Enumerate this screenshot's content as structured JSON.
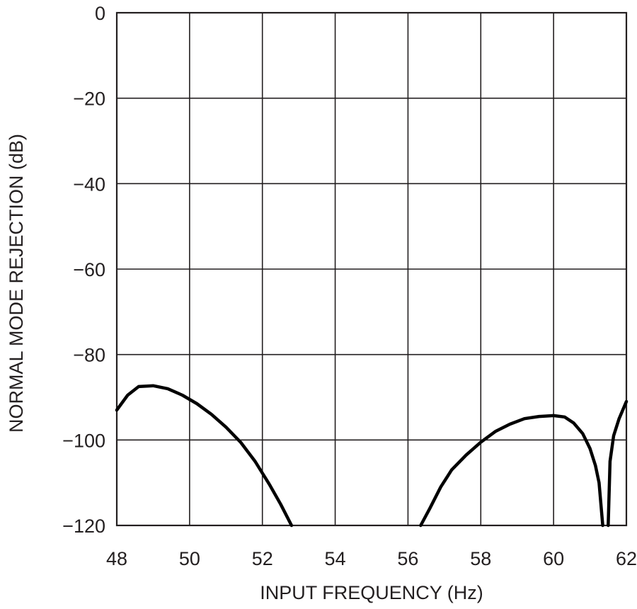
{
  "chart_data": {
    "type": "line",
    "title": "",
    "xlabel": "INPUT FREQUENCY (Hz)",
    "ylabel": "NORMAL MODE REJECTION (dB)",
    "xlim": [
      48,
      62
    ],
    "ylim": [
      -120,
      0
    ],
    "xticks": [
      48,
      50,
      52,
      54,
      56,
      58,
      60,
      62
    ],
    "yticks": [
      0,
      -20,
      -40,
      -60,
      -80,
      -100,
      -120
    ],
    "xtick_labels": [
      "48",
      "50",
      "52",
      "54",
      "56",
      "58",
      "60",
      "62"
    ],
    "ytick_labels": [
      "0",
      "−20",
      "−40",
      "−60",
      "−80",
      "−100",
      "−120"
    ],
    "grid": true,
    "legend": "none",
    "line_color": "#000000",
    "series": [
      {
        "x": [
          48,
          48.3,
          48.6,
          49.0,
          49.4,
          49.8,
          50.2,
          50.6,
          51.0,
          51.4,
          51.8,
          52.2,
          52.5,
          52.8
        ],
        "y": [
          -93,
          -89.5,
          -87.5,
          -87.3,
          -88.0,
          -89.5,
          -91.5,
          -94.0,
          -97.0,
          -100.5,
          -105.0,
          -110.5,
          -115.0,
          -120
        ]
      },
      {
        "x": [
          56.35,
          56.6,
          56.9,
          57.2,
          57.6,
          58.0,
          58.4,
          58.8,
          59.2,
          59.6,
          60.0,
          60.3,
          60.55,
          60.8,
          61.0,
          61.15,
          61.25,
          61.35
        ],
        "y": [
          -120,
          -116,
          -111,
          -107,
          -103.5,
          -100.5,
          -98.0,
          -96.3,
          -95.0,
          -94.5,
          -94.3,
          -94.6,
          -96.0,
          -98.5,
          -102,
          -106,
          -110,
          -120
        ]
      },
      {
        "x": [
          61.5,
          61.55,
          61.65,
          61.8,
          62.0
        ],
        "y": [
          -120,
          -105,
          -99,
          -95,
          -91
        ]
      }
    ]
  }
}
